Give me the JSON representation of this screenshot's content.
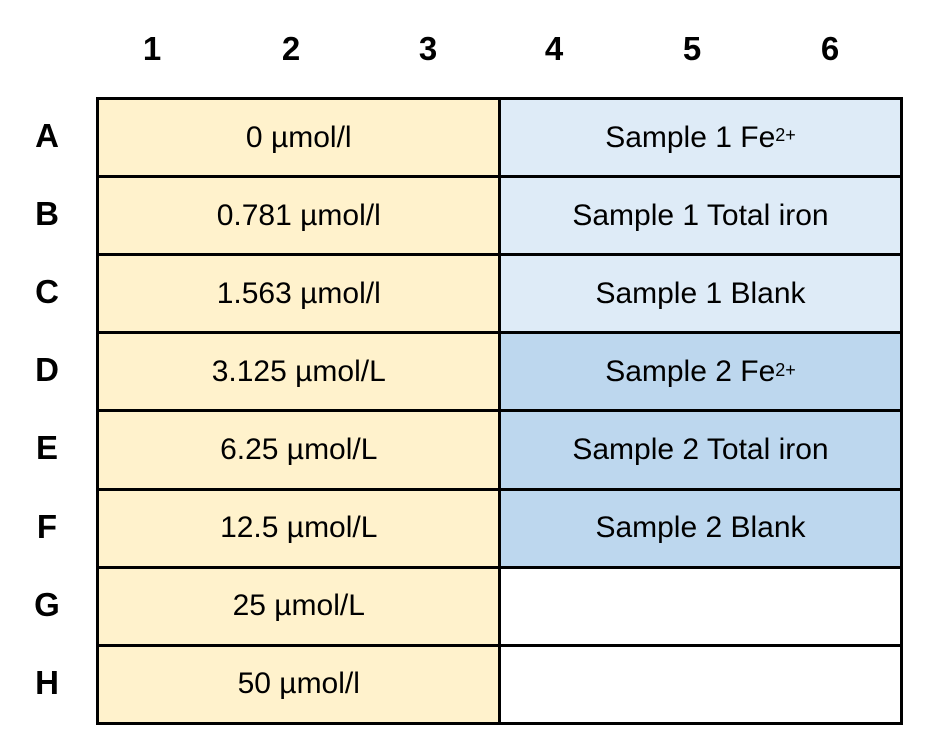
{
  "column_headers": [
    "1",
    "2",
    "3",
    "4",
    "5",
    "6"
  ],
  "row_headers": [
    "A",
    "B",
    "C",
    "D",
    "E",
    "F",
    "G",
    "H"
  ],
  "standards": [
    "0 µmol/l",
    "0.781 µmol/l",
    "1.563 µmol/l",
    "3.125 µmol/L",
    "6.25 µmol/L",
    "12.5 µmol/L",
    "25 µmol/L",
    "50 µmol/l"
  ],
  "samples": [
    {
      "text": "Sample 1 Fe",
      "sup": "2+",
      "color": "#DEEBF7"
    },
    {
      "text": "Sample 1 Total iron",
      "sup": "",
      "color": "#DEEBF7"
    },
    {
      "text": "Sample 1 Blank",
      "sup": "",
      "color": "#DEEBF7"
    },
    {
      "text": "Sample 2 Fe",
      "sup": "2+",
      "color": "#BDD7EE"
    },
    {
      "text": "Sample 2 Total iron",
      "sup": "",
      "color": "#BDD7EE"
    },
    {
      "text": "Sample 2 Blank",
      "sup": "",
      "color": "#BDD7EE"
    },
    {
      "text": "",
      "sup": "",
      "color": "#FFFFFF"
    },
    {
      "text": "",
      "sup": "",
      "color": "#FFFFFF"
    }
  ],
  "colors": {
    "standards": "#FFF2CC",
    "border": "#000000"
  }
}
